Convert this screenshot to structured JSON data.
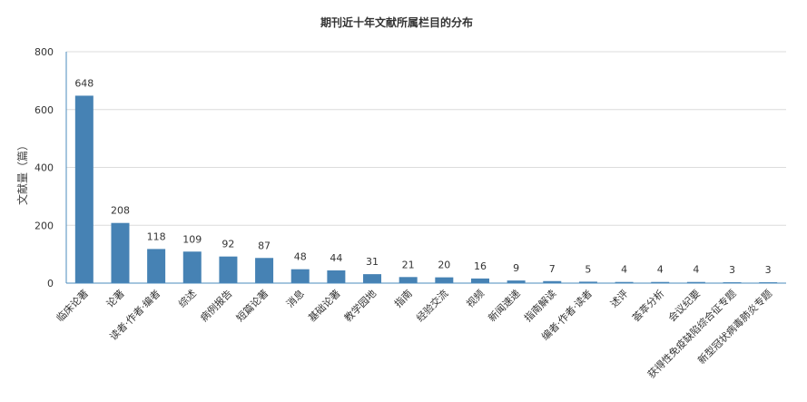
{
  "chart_data": {
    "type": "bar",
    "title": "期刊近十年文献所属栏目的分布",
    "xlabel": "",
    "ylabel": "文献量（篇）",
    "ylim": [
      0,
      800
    ],
    "yticks": [
      0,
      200,
      400,
      600,
      800
    ],
    "grid": true,
    "legend": "none",
    "bar_color": "#4682b4",
    "axis_color": "#4b8bbe",
    "categories": [
      "临床论著",
      "论著",
      "读者·作者·编者",
      "综述",
      "病例报告",
      "短篇论著",
      "消息",
      "基础论著",
      "教学园地",
      "指南",
      "经验交流",
      "视频",
      "新闻速递",
      "指南解读",
      "编者·作者·读者",
      "述评",
      "荟萃分析",
      "会议纪要",
      "获得性免疫缺陷综合征专题",
      "新型冠状病毒肺炎专题"
    ],
    "values": [
      648,
      208,
      118,
      109,
      92,
      87,
      48,
      44,
      31,
      21,
      20,
      16,
      9,
      7,
      5,
      4,
      4,
      4,
      3,
      3
    ]
  }
}
